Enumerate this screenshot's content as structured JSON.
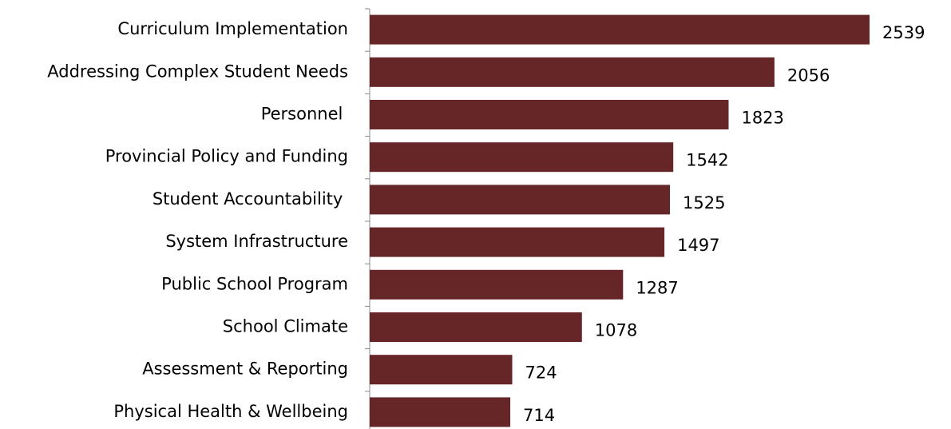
{
  "chart_data": {
    "type": "bar",
    "orientation": "horizontal",
    "categories": [
      "Curriculum Implementation",
      "Addressing Complex Student Needs",
      "Personnel ",
      "Provincial Policy and Funding",
      "Student Accountability ",
      "System Infrastructure",
      "Public School Program",
      "School Climate",
      "Assessment & Reporting",
      "Physical Health & Wellbeing"
    ],
    "values": [
      2539,
      2056,
      1823,
      1542,
      1525,
      1497,
      1287,
      1078,
      724,
      714
    ],
    "color": "#662526"
  }
}
